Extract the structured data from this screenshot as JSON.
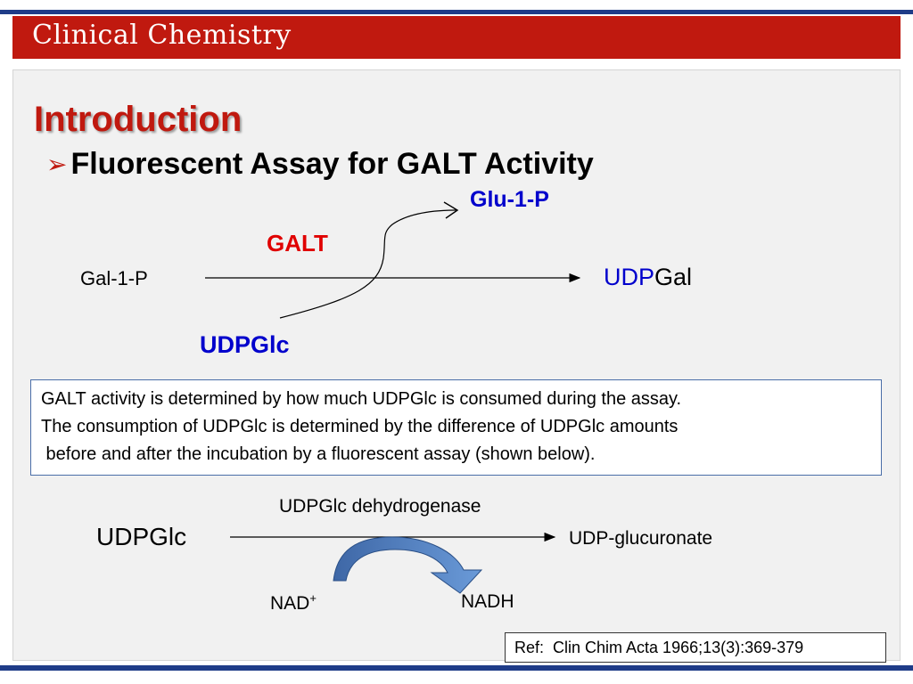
{
  "header": {
    "title": "Clinical Chemistry"
  },
  "slide": {
    "heading": "Introduction",
    "bullet": "Fluorescent Assay for GALT Activity"
  },
  "reaction1": {
    "substrate": "Gal-1-P",
    "enzyme": "GALT",
    "cosubstrate": "UDPGlc",
    "coproduct": "Glu-1-P",
    "product_prefix": "UDP",
    "product_suffix": "Gal"
  },
  "note": {
    "lines": [
      "GALT activity is determined by how much UDPGlc is consumed during the assay.",
      "The consumption of UDPGlc is determined by the difference of UDPGlc amounts",
      " before and after the incubation by a fluorescent assay (shown below)."
    ]
  },
  "reaction2": {
    "substrate": "UDPGlc",
    "enzyme": "UDPGlc dehydrogenase",
    "product": "UDP-glucuronate",
    "cofactor_in": "NAD",
    "cofactor_in_sup": "+",
    "cofactor_out": "NADH"
  },
  "reference": "Ref:  Clin Chim Acta 1966;13(3):369-379",
  "colors": {
    "header_red": "#c0190f",
    "bar_blue": "#1f3c88",
    "blue_text": "#0000cc",
    "red_text": "#e00000",
    "arc_blue": "#4f7fc4"
  }
}
